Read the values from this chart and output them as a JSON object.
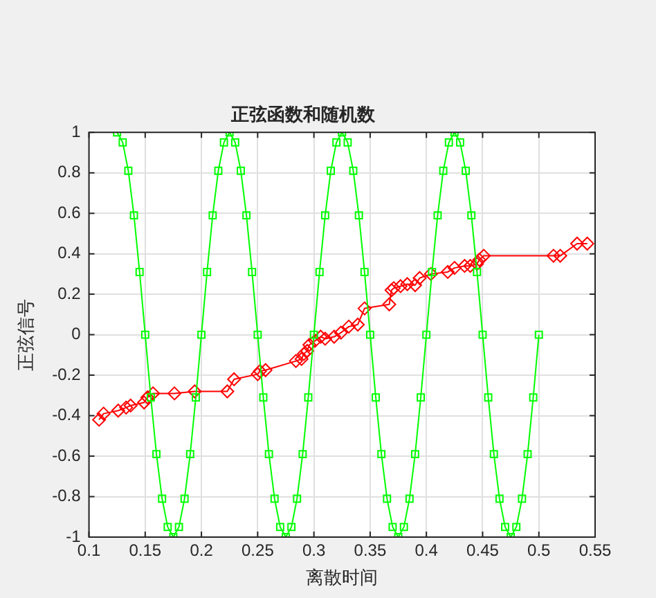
{
  "chart_data": {
    "type": "line",
    "title": "正弦函数和随机数",
    "xlabel": "离散时间",
    "ylabel": "正弦信号",
    "xlim": [
      0.1,
      0.55
    ],
    "xticks": [
      0.1,
      0.15,
      0.2,
      0.25,
      0.3,
      0.35,
      0.4,
      0.45,
      0.5,
      0.55
    ],
    "ylim": [
      -1,
      1
    ],
    "yticks": [
      -1,
      -0.8,
      -0.6,
      -0.4,
      -0.2,
      0,
      0.2,
      0.4,
      0.6,
      0.8,
      1
    ],
    "grid": true,
    "legend": false,
    "series": [
      {
        "color": "#00ff00",
        "marker": "square",
        "x": [
          0.125,
          0.13,
          0.135,
          0.14,
          0.145,
          0.15,
          0.155,
          0.16,
          0.165,
          0.17,
          0.175,
          0.18,
          0.185,
          0.19,
          0.195,
          0.2,
          0.205,
          0.21,
          0.215,
          0.22,
          0.225,
          0.23,
          0.235,
          0.24,
          0.245,
          0.25,
          0.255,
          0.26,
          0.265,
          0.27,
          0.275,
          0.28,
          0.285,
          0.29,
          0.295,
          0.3,
          0.305,
          0.31,
          0.315,
          0.32,
          0.325,
          0.33,
          0.335,
          0.34,
          0.345,
          0.35,
          0.355,
          0.36,
          0.365,
          0.37,
          0.375,
          0.38,
          0.385,
          0.39,
          0.395,
          0.4,
          0.405,
          0.41,
          0.415,
          0.42,
          0.425,
          0.43,
          0.435,
          0.44,
          0.445,
          0.45,
          0.455,
          0.46,
          0.465,
          0.47,
          0.475,
          0.48,
          0.485,
          0.49,
          0.495,
          0.5
        ],
        "values": [
          1,
          0.95,
          0.81,
          0.59,
          0.31,
          0,
          -0.31,
          -0.59,
          -0.81,
          -0.95,
          -1,
          -0.95,
          -0.81,
          -0.59,
          -0.31,
          0,
          0.31,
          0.59,
          0.81,
          0.95,
          1,
          0.95,
          0.81,
          0.59,
          0.31,
          0,
          -0.31,
          -0.59,
          -0.81,
          -0.95,
          -1,
          -0.95,
          -0.81,
          -0.59,
          -0.31,
          0,
          0.31,
          0.59,
          0.81,
          0.95,
          1,
          0.95,
          0.81,
          0.59,
          0.31,
          0,
          -0.31,
          -0.59,
          -0.81,
          -0.95,
          -1,
          -0.95,
          -0.81,
          -0.59,
          -0.31,
          0,
          0.31,
          0.59,
          0.81,
          0.95,
          1,
          0.95,
          0.81,
          0.59,
          0.31,
          0,
          -0.31,
          -0.59,
          -0.81,
          -0.95,
          -1,
          -0.95,
          -0.81,
          -0.59,
          -0.31,
          0
        ]
      },
      {
        "color": "#ff0000",
        "marker": "diamond",
        "x": [
          0.109,
          0.113,
          0.126,
          0.133,
          0.137,
          0.149,
          0.152,
          0.157,
          0.176,
          0.194,
          0.223,
          0.229,
          0.25,
          0.252,
          0.257,
          0.284,
          0.289,
          0.291,
          0.294,
          0.296,
          0.301,
          0.306,
          0.31,
          0.318,
          0.324,
          0.331,
          0.339,
          0.345,
          0.367,
          0.369,
          0.371,
          0.377,
          0.383,
          0.39,
          0.394,
          0.404,
          0.419,
          0.425,
          0.434,
          0.439,
          0.445,
          0.447,
          0.451,
          0.513,
          0.519,
          0.534,
          0.543
        ],
        "values": [
          -0.42,
          -0.39,
          -0.375,
          -0.36,
          -0.35,
          -0.335,
          -0.31,
          -0.29,
          -0.29,
          -0.28,
          -0.28,
          -0.22,
          -0.195,
          -0.18,
          -0.175,
          -0.13,
          -0.12,
          -0.095,
          -0.08,
          -0.05,
          -0.03,
          -0.01,
          -0.02,
          -0.01,
          0.01,
          0.04,
          0.05,
          0.13,
          0.15,
          0.22,
          0.23,
          0.24,
          0.25,
          0.245,
          0.28,
          0.3,
          0.31,
          0.33,
          0.34,
          0.34,
          0.35,
          0.37,
          0.39,
          0.39,
          0.39,
          0.45,
          0.45
        ]
      }
    ]
  }
}
